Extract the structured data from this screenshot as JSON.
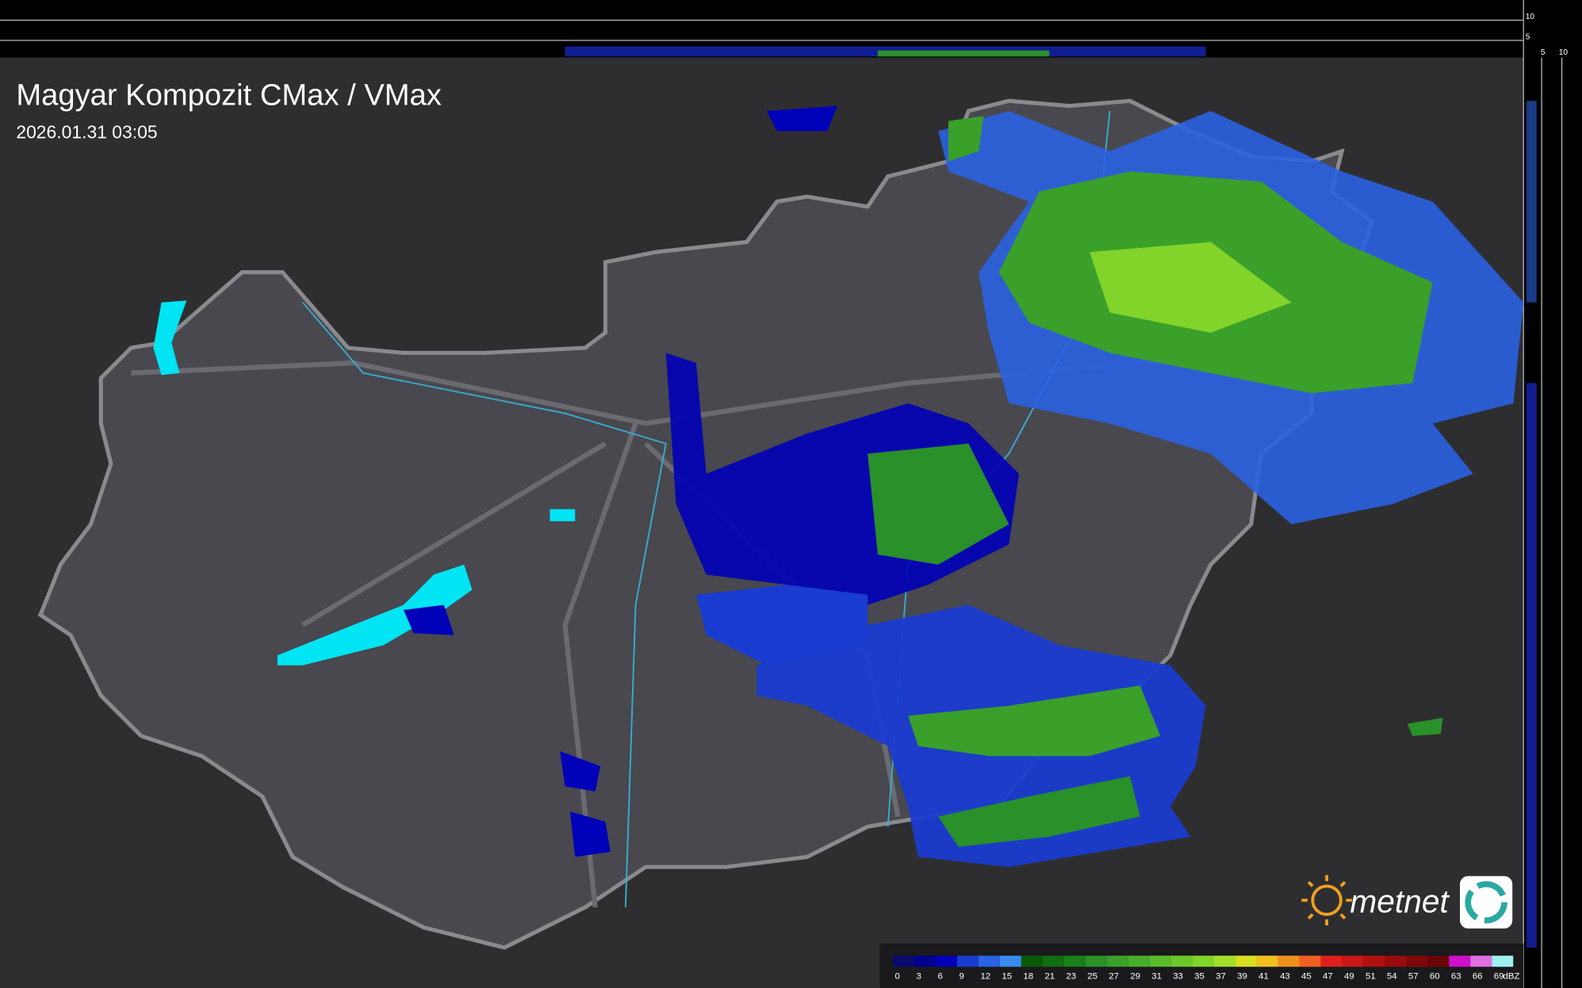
{
  "header": {
    "title": "Magyar Kompozit CMax / VMax",
    "timestamp": "2026.01.31 03:05"
  },
  "profile_labels": {
    "top": [
      "10",
      "5"
    ],
    "side": [
      "5",
      "10"
    ]
  },
  "logo": {
    "text": "metnet"
  },
  "legend": {
    "unit": "dBZ",
    "stops": [
      {
        "label": "0",
        "color": "#0a0a6e"
      },
      {
        "label": "3",
        "color": "#00008c"
      },
      {
        "label": "6",
        "color": "#0000b8"
      },
      {
        "label": "9",
        "color": "#1a3cd0"
      },
      {
        "label": "12",
        "color": "#2a62e2"
      },
      {
        "label": "15",
        "color": "#3a8cf0"
      },
      {
        "label": "18",
        "color": "#0a5a0a"
      },
      {
        "label": "21",
        "color": "#126e12"
      },
      {
        "label": "23",
        "color": "#1a801a"
      },
      {
        "label": "25",
        "color": "#2a902a"
      },
      {
        "label": "27",
        "color": "#3aa02a"
      },
      {
        "label": "29",
        "color": "#4aae2a"
      },
      {
        "label": "31",
        "color": "#5abc2a"
      },
      {
        "label": "33",
        "color": "#6cc82a"
      },
      {
        "label": "35",
        "color": "#82d42a"
      },
      {
        "label": "37",
        "color": "#a2e02a"
      },
      {
        "label": "39",
        "color": "#d8e020"
      },
      {
        "label": "41",
        "color": "#f0c020"
      },
      {
        "label": "43",
        "color": "#f09020"
      },
      {
        "label": "45",
        "color": "#f06020"
      },
      {
        "label": "47",
        "color": "#e02020"
      },
      {
        "label": "49",
        "color": "#c81818"
      },
      {
        "label": "51",
        "color": "#b01010"
      },
      {
        "label": "54",
        "color": "#980c0c"
      },
      {
        "label": "57",
        "color": "#800808"
      },
      {
        "label": "60",
        "color": "#6a0505"
      },
      {
        "label": "63",
        "color": "#cc10cc"
      },
      {
        "label": "66",
        "color": "#e070e0"
      },
      {
        "label": "69",
        "color": "#a0f0f0"
      }
    ]
  }
}
